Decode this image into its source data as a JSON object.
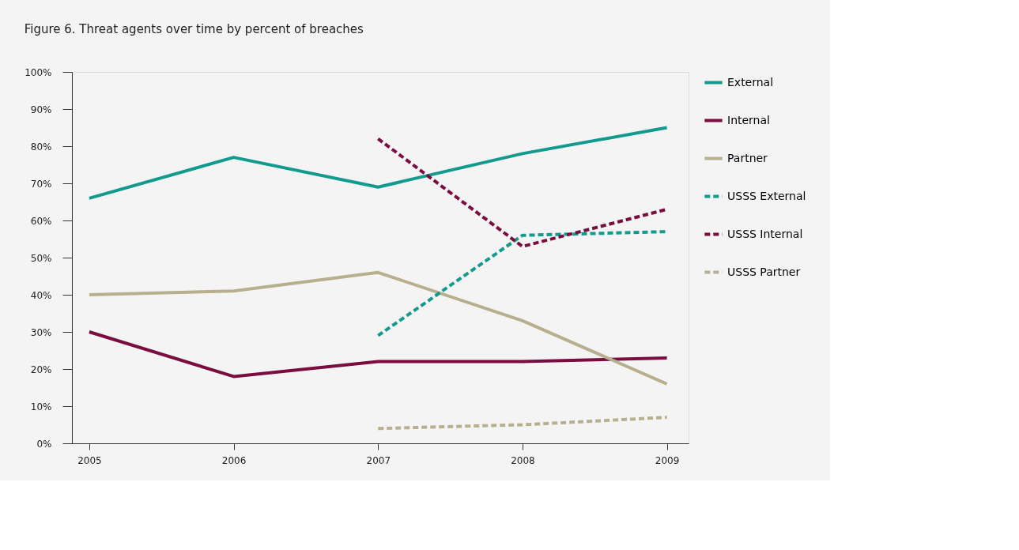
{
  "chart_data": {
    "type": "line",
    "title": "Figure 6. Threat agents over time by percent of breaches",
    "categories": [
      "2005",
      "2006",
      "2007",
      "2008",
      "2009"
    ],
    "ylim": [
      0,
      100
    ],
    "yticks": [
      {
        "value": 0,
        "label": "0%"
      },
      {
        "value": 10,
        "label": "10%"
      },
      {
        "value": 20,
        "label": "20%"
      },
      {
        "value": 30,
        "label": "30%"
      },
      {
        "value": 40,
        "label": "40%"
      },
      {
        "value": 50,
        "label": "50%"
      },
      {
        "value": 60,
        "label": "60%"
      },
      {
        "value": 70,
        "label": "70%"
      },
      {
        "value": 80,
        "label": "80%"
      },
      {
        "value": 90,
        "label": "90%"
      },
      {
        "value": 100,
        "label": "100%"
      }
    ],
    "grid": false,
    "legend": "right",
    "marker": "none",
    "series": [
      {
        "name": "External",
        "color": "#129a8f",
        "line_style": "solid",
        "values": [
          66,
          77,
          69,
          78,
          85
        ]
      },
      {
        "name": "Internal",
        "color": "#7b0c3f",
        "line_style": "solid",
        "values": [
          30,
          18,
          22,
          22,
          23
        ]
      },
      {
        "name": "Partner",
        "color": "#b7b08f",
        "line_style": "solid",
        "values": [
          40,
          41,
          46,
          33,
          16
        ]
      },
      {
        "name": "USSS External",
        "color": "#129a8f",
        "line_style": "dashed",
        "values": [
          null,
          null,
          29,
          56,
          57
        ]
      },
      {
        "name": "USSS Internal",
        "color": "#7b0c3f",
        "line_style": "dashed",
        "values": [
          null,
          null,
          82,
          53,
          63
        ]
      },
      {
        "name": "USSS Partner",
        "color": "#b7b08f",
        "line_style": "dashed",
        "values": [
          null,
          null,
          4,
          5,
          7
        ]
      }
    ]
  }
}
